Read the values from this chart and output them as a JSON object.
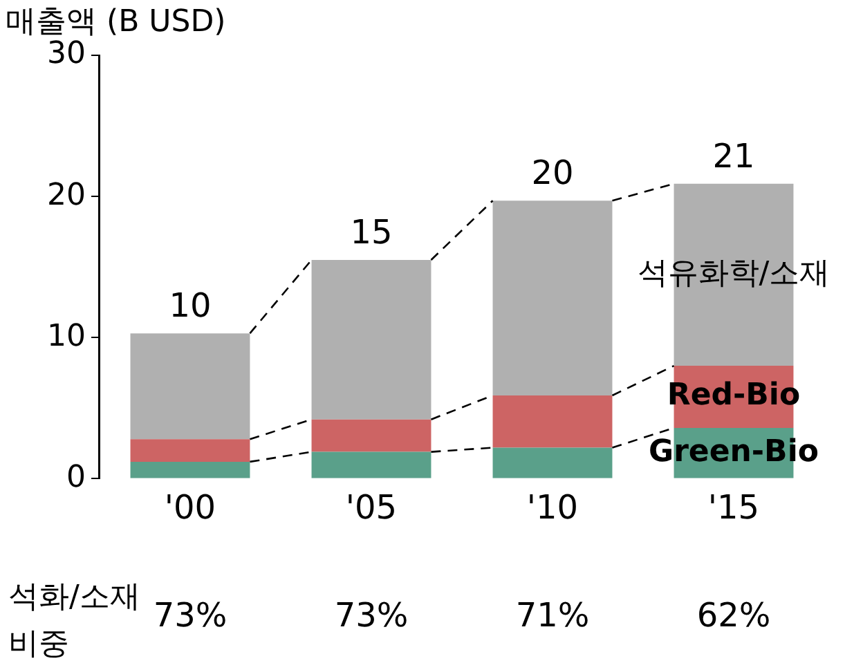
{
  "chart_data": {
    "type": "bar",
    "ylabel": "매출액 (B USD)",
    "categories": [
      "'00",
      "'05",
      "'10",
      "'15"
    ],
    "stacked": true,
    "grid": false,
    "series": [
      {
        "name": "Green-Bio",
        "color": "#5aa08a",
        "values": [
          1.2,
          1.9,
          2.2,
          3.6
        ]
      },
      {
        "name": "Red-Bio",
        "color": "#cd6464",
        "values": [
          1.6,
          2.3,
          3.7,
          4.4
        ]
      },
      {
        "name": "석유화학/소재",
        "color": "#b0b0b0",
        "values": [
          7.5,
          11.3,
          13.8,
          12.9
        ]
      }
    ],
    "totals": [
      "10",
      "15",
      "20",
      "21"
    ],
    "ylim": [
      0,
      30
    ],
    "yticks": [
      0,
      10,
      20,
      30
    ],
    "annotations": [
      "석화/소재\n비중",
      "73%",
      "73%",
      "71%",
      "62%"
    ]
  }
}
